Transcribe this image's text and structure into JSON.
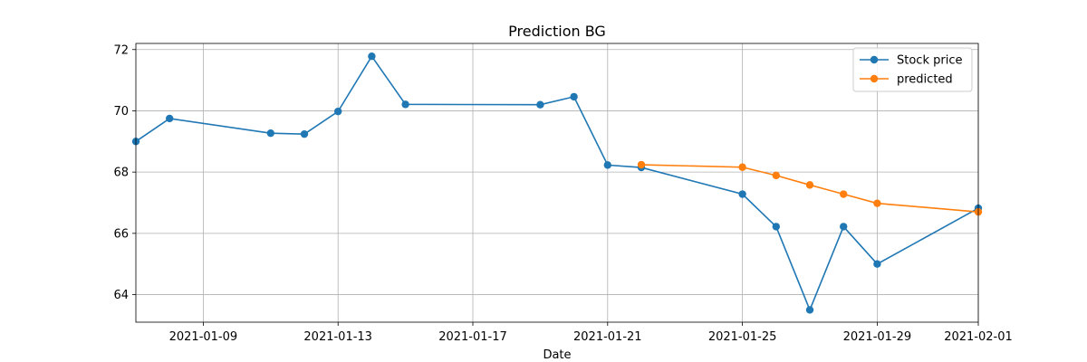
{
  "chart_data": {
    "type": "line",
    "title": "Prediction BG",
    "xlabel": "Date",
    "ylabel": "",
    "xlim": [
      "2021-01-07",
      "2021-02-01"
    ],
    "ylim": [
      63.1,
      72.2
    ],
    "x_ticks": [
      "2021-01-09",
      "2021-01-13",
      "2021-01-17",
      "2021-01-21",
      "2021-01-25",
      "2021-01-29",
      "2021-02-01"
    ],
    "y_ticks": [
      64,
      66,
      68,
      70,
      72
    ],
    "grid": true,
    "legend_position": "top-right",
    "series": [
      {
        "name": "Stock price",
        "color": "#1f77b4",
        "marker": "circle",
        "points": [
          {
            "x": "2021-01-07",
            "y": 69.0
          },
          {
            "x": "2021-01-08",
            "y": 69.75
          },
          {
            "x": "2021-01-11",
            "y": 69.27
          },
          {
            "x": "2021-01-12",
            "y": 69.24
          },
          {
            "x": "2021-01-13",
            "y": 69.98
          },
          {
            "x": "2021-01-14",
            "y": 71.78
          },
          {
            "x": "2021-01-15",
            "y": 70.21
          },
          {
            "x": "2021-01-19",
            "y": 70.2
          },
          {
            "x": "2021-01-20",
            "y": 70.46
          },
          {
            "x": "2021-01-21",
            "y": 68.23
          },
          {
            "x": "2021-01-22",
            "y": 68.15
          },
          {
            "x": "2021-01-25",
            "y": 67.28
          },
          {
            "x": "2021-01-26",
            "y": 66.22
          },
          {
            "x": "2021-01-27",
            "y": 63.5
          },
          {
            "x": "2021-01-28",
            "y": 66.22
          },
          {
            "x": "2021-01-29",
            "y": 65.0
          },
          {
            "x": "2021-02-01",
            "y": 66.82
          }
        ]
      },
      {
        "name": "predicted",
        "color": "#ff7f0e",
        "marker": "circle",
        "points": [
          {
            "x": "2021-01-22",
            "y": 68.24
          },
          {
            "x": "2021-01-25",
            "y": 68.16
          },
          {
            "x": "2021-01-26",
            "y": 67.89
          },
          {
            "x": "2021-01-27",
            "y": 67.58
          },
          {
            "x": "2021-01-28",
            "y": 67.28
          },
          {
            "x": "2021-01-29",
            "y": 66.98
          },
          {
            "x": "2021-02-01",
            "y": 66.7
          }
        ]
      }
    ]
  }
}
